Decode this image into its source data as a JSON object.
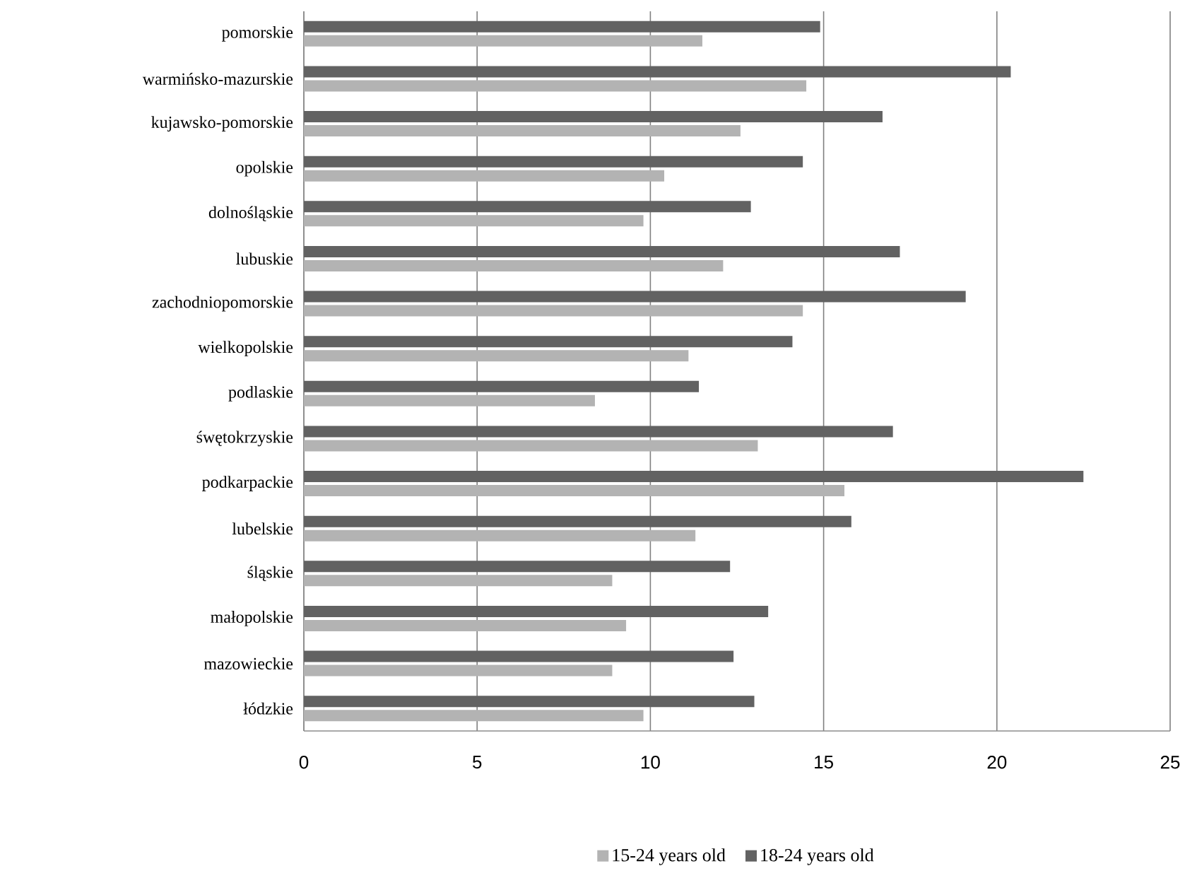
{
  "chart_data": {
    "type": "bar",
    "orientation": "horizontal",
    "categories": [
      "pomorskie",
      "warmińsko-mazurskie",
      "kujawsko-pomorskie",
      "opolskie",
      "dolnośląskie",
      "lubuskie",
      "zachodniopomorskie",
      "wielkopolskie",
      "podlaskie",
      "śwętokrzyskie",
      "podkarpackie",
      "lubelskie",
      "śląskie",
      "małopolskie",
      "mazowieckie",
      "łódzkie"
    ],
    "series": [
      {
        "name": "15-24 years old",
        "color": "#b3b3b3",
        "values": [
          11.5,
          14.5,
          12.6,
          10.4,
          9.8,
          12.1,
          14.4,
          11.1,
          8.4,
          13.1,
          15.6,
          11.3,
          8.9,
          9.3,
          8.9,
          9.8
        ]
      },
      {
        "name": "18-24 years old",
        "color": "#626262",
        "values": [
          14.9,
          20.4,
          16.7,
          14.4,
          12.9,
          17.2,
          19.1,
          14.1,
          11.4,
          17.0,
          22.5,
          15.8,
          12.3,
          13.4,
          12.4,
          13.0
        ]
      }
    ],
    "xlim": [
      0,
      25
    ],
    "xticks": [
      0,
      5,
      10,
      15,
      20,
      25
    ],
    "grid": "x",
    "legend": "bottom"
  }
}
